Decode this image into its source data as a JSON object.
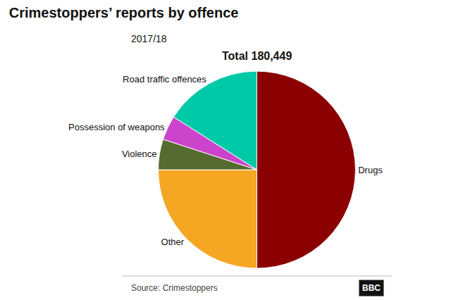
{
  "chart_data": {
    "type": "pie",
    "title": "Crimestoppers’ reports by offence",
    "subtitle": "2017/18",
    "categories": [
      "Drugs",
      "Other",
      "Violence",
      "Possession of weapons",
      "Road traffic offences"
    ],
    "values": [
      50.0,
      25.0,
      5.0,
      4.0,
      16.0
    ],
    "colors": [
      "#8b0000",
      "#f5a623",
      "#556b2f",
      "#cc44cc",
      "#00c9a7"
    ],
    "annotations": [
      "Total 180,449",
      "Source: Crimestoppers",
      "BBC"
    ]
  }
}
